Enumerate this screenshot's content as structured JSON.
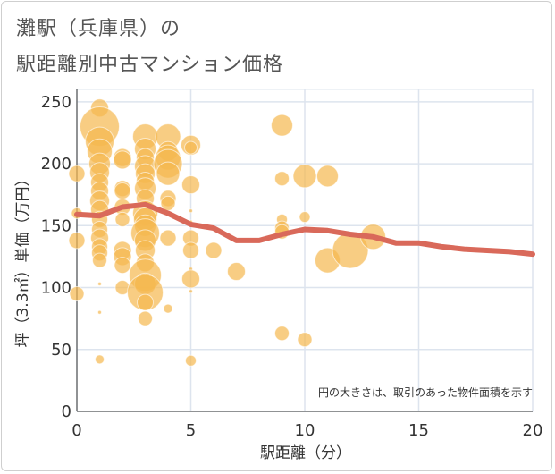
{
  "title_line1": "灘駅（兵庫県）の",
  "title_line2": "駅距離別中古マンション価格",
  "colors": {
    "bubble": "#f5b84f",
    "line": "#d9695a",
    "grid": "#dde4ee",
    "axis": "#333333"
  },
  "chart_data": {
    "type": "scatter",
    "title": "灘駅（兵庫県）の駅距離別中古マンション価格",
    "xlabel": "駅距離（分）",
    "ylabel": "坪（3.3㎡）単価（万円）",
    "xlim": [
      0,
      20
    ],
    "ylim": [
      0,
      260
    ],
    "xticks": [
      0,
      5,
      10,
      15,
      20
    ],
    "yticks": [
      0,
      50,
      100,
      150,
      200,
      250
    ],
    "grid": true,
    "note": "円の大きさは、取引のあった物件面積を示す",
    "scatter": [
      {
        "x": 0,
        "y": 192,
        "s": 9
      },
      {
        "x": 0,
        "y": 138,
        "s": 9
      },
      {
        "x": 0,
        "y": 95,
        "s": 8
      },
      {
        "x": 0,
        "y": 160,
        "s": 6
      },
      {
        "x": 1,
        "y": 245,
        "s": 10
      },
      {
        "x": 1,
        "y": 230,
        "s": 22
      },
      {
        "x": 1,
        "y": 218,
        "s": 16
      },
      {
        "x": 1,
        "y": 210,
        "s": 14
      },
      {
        "x": 1,
        "y": 200,
        "s": 12
      },
      {
        "x": 1,
        "y": 193,
        "s": 11
      },
      {
        "x": 1,
        "y": 185,
        "s": 10
      },
      {
        "x": 1,
        "y": 178,
        "s": 10
      },
      {
        "x": 1,
        "y": 170,
        "s": 11
      },
      {
        "x": 1,
        "y": 163,
        "s": 10
      },
      {
        "x": 1,
        "y": 155,
        "s": 9
      },
      {
        "x": 1,
        "y": 147,
        "s": 9
      },
      {
        "x": 1,
        "y": 140,
        "s": 10
      },
      {
        "x": 1,
        "y": 133,
        "s": 9
      },
      {
        "x": 1,
        "y": 128,
        "s": 9
      },
      {
        "x": 1,
        "y": 122,
        "s": 8
      },
      {
        "x": 1,
        "y": 42,
        "s": 5
      },
      {
        "x": 1,
        "y": 103,
        "s": 2
      },
      {
        "x": 1,
        "y": 80,
        "s": 2
      },
      {
        "x": 2,
        "y": 205,
        "s": 10
      },
      {
        "x": 2,
        "y": 203,
        "s": 10
      },
      {
        "x": 2,
        "y": 180,
        "s": 9
      },
      {
        "x": 2,
        "y": 178,
        "s": 9
      },
      {
        "x": 2,
        "y": 165,
        "s": 9
      },
      {
        "x": 2,
        "y": 155,
        "s": 8
      },
      {
        "x": 2,
        "y": 130,
        "s": 10
      },
      {
        "x": 2,
        "y": 125,
        "s": 10
      },
      {
        "x": 2,
        "y": 118,
        "s": 9
      },
      {
        "x": 2,
        "y": 100,
        "s": 8
      },
      {
        "x": 3,
        "y": 222,
        "s": 14
      },
      {
        "x": 3,
        "y": 212,
        "s": 12
      },
      {
        "x": 3,
        "y": 205,
        "s": 10
      },
      {
        "x": 3,
        "y": 198,
        "s": 12
      },
      {
        "x": 3,
        "y": 192,
        "s": 11
      },
      {
        "x": 3,
        "y": 186,
        "s": 10
      },
      {
        "x": 3,
        "y": 180,
        "s": 12
      },
      {
        "x": 3,
        "y": 172,
        "s": 10
      },
      {
        "x": 3,
        "y": 160,
        "s": 14
      },
      {
        "x": 3,
        "y": 155,
        "s": 13
      },
      {
        "x": 3,
        "y": 150,
        "s": 12
      },
      {
        "x": 3,
        "y": 144,
        "s": 16
      },
      {
        "x": 3,
        "y": 138,
        "s": 12
      },
      {
        "x": 3,
        "y": 130,
        "s": 11
      },
      {
        "x": 3,
        "y": 120,
        "s": 10
      },
      {
        "x": 3,
        "y": 110,
        "s": 18
      },
      {
        "x": 3,
        "y": 103,
        "s": 12
      },
      {
        "x": 3,
        "y": 96,
        "s": 20
      },
      {
        "x": 3,
        "y": 88,
        "s": 9
      },
      {
        "x": 3,
        "y": 75,
        "s": 8
      },
      {
        "x": 4,
        "y": 222,
        "s": 14
      },
      {
        "x": 4,
        "y": 210,
        "s": 11
      },
      {
        "x": 4,
        "y": 205,
        "s": 14
      },
      {
        "x": 4,
        "y": 200,
        "s": 16
      },
      {
        "x": 4,
        "y": 192,
        "s": 13
      },
      {
        "x": 4,
        "y": 172,
        "s": 9
      },
      {
        "x": 4,
        "y": 168,
        "s": 8
      },
      {
        "x": 4,
        "y": 140,
        "s": 9
      },
      {
        "x": 4,
        "y": 83,
        "s": 5
      },
      {
        "x": 5,
        "y": 215,
        "s": 11
      },
      {
        "x": 5,
        "y": 213,
        "s": 7
      },
      {
        "x": 5,
        "y": 183,
        "s": 10
      },
      {
        "x": 5,
        "y": 162,
        "s": 2
      },
      {
        "x": 5,
        "y": 153,
        "s": 2
      },
      {
        "x": 5,
        "y": 140,
        "s": 9
      },
      {
        "x": 5,
        "y": 130,
        "s": 9
      },
      {
        "x": 5,
        "y": 115,
        "s": 2
      },
      {
        "x": 5,
        "y": 107,
        "s": 10
      },
      {
        "x": 5,
        "y": 97,
        "s": 2
      },
      {
        "x": 5,
        "y": 41,
        "s": 6
      },
      {
        "x": 6,
        "y": 130,
        "s": 9
      },
      {
        "x": 7,
        "y": 113,
        "s": 10
      },
      {
        "x": 9,
        "y": 231,
        "s": 12
      },
      {
        "x": 9,
        "y": 188,
        "s": 8
      },
      {
        "x": 9,
        "y": 155,
        "s": 6
      },
      {
        "x": 9,
        "y": 148,
        "s": 8
      },
      {
        "x": 9,
        "y": 145,
        "s": 8
      },
      {
        "x": 9,
        "y": 63,
        "s": 8
      },
      {
        "x": 10,
        "y": 190,
        "s": 13
      },
      {
        "x": 10,
        "y": 157,
        "s": 6
      },
      {
        "x": 10,
        "y": 58,
        "s": 8
      },
      {
        "x": 11,
        "y": 190,
        "s": 12
      },
      {
        "x": 11,
        "y": 122,
        "s": 14
      },
      {
        "x": 12,
        "y": 130,
        "s": 20
      },
      {
        "x": 13,
        "y": 141,
        "s": 14
      }
    ],
    "trend_line": {
      "x": [
        0,
        1,
        2,
        3,
        4,
        5,
        6,
        7,
        8,
        9,
        10,
        11,
        12,
        13,
        14,
        15,
        16,
        17,
        18,
        19,
        20
      ],
      "y": [
        159,
        158,
        165,
        167,
        160,
        151,
        148,
        138,
        138,
        143,
        147,
        146,
        143,
        141,
        136,
        136,
        133,
        131,
        130,
        129,
        127
      ]
    }
  }
}
